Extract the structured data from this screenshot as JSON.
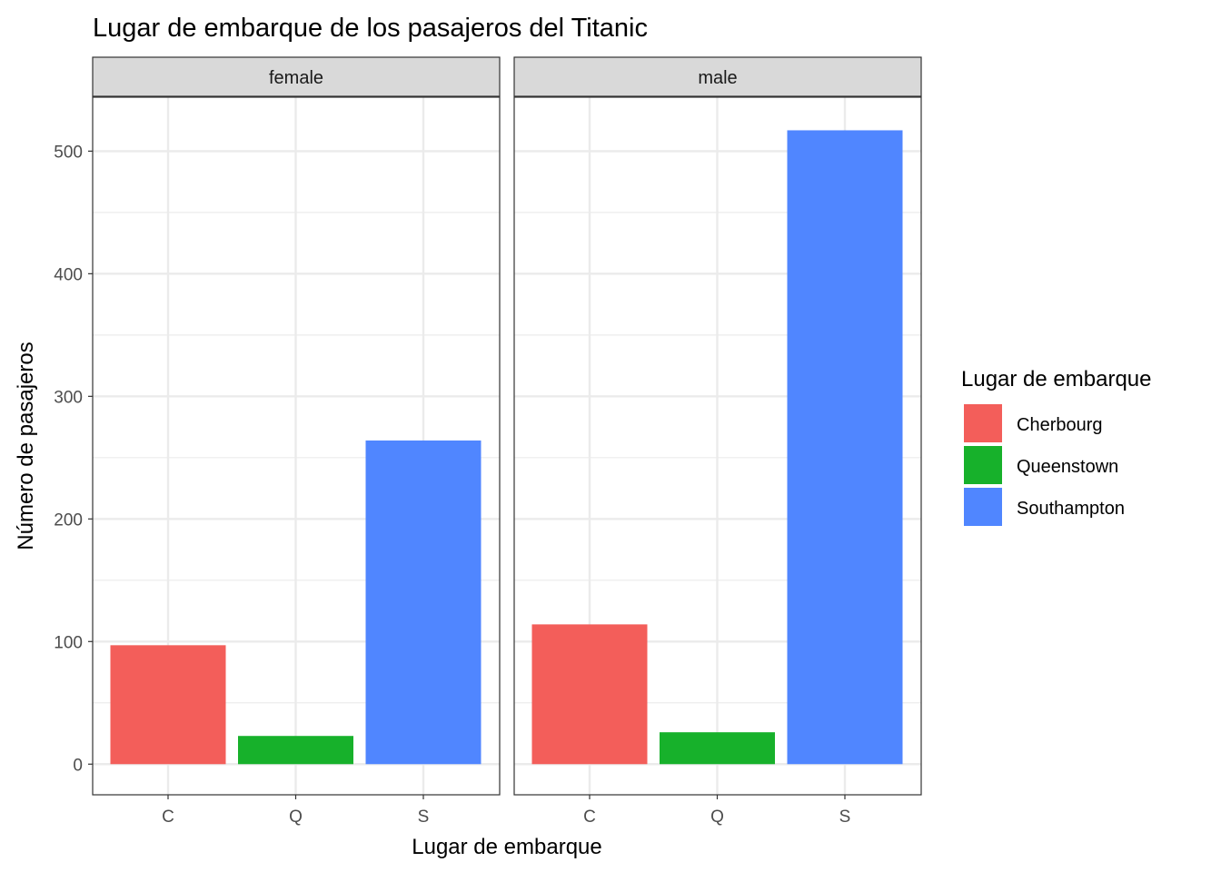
{
  "chart_data": {
    "type": "bar",
    "title": "Lugar de embarque de los pasajeros del Titanic",
    "xlabel": "Lugar de embarque",
    "ylabel": "Número de pasajeros",
    "categories": [
      "C",
      "Q",
      "S"
    ],
    "ylim": [
      -25,
      544
    ],
    "yticks": [
      0,
      100,
      200,
      300,
      400,
      500
    ],
    "grid": true,
    "facets": [
      {
        "name": "female",
        "values": [
          97,
          23,
          264
        ]
      },
      {
        "name": "male",
        "values": [
          114,
          26,
          517
        ]
      }
    ],
    "legend": {
      "title": "Lugar de embarque",
      "position": "right",
      "entries": [
        "Cherbourg",
        "Queenstown",
        "Southampton"
      ]
    },
    "colors": [
      "#F35E5A",
      "#17B12B",
      "#5086FF"
    ]
  }
}
